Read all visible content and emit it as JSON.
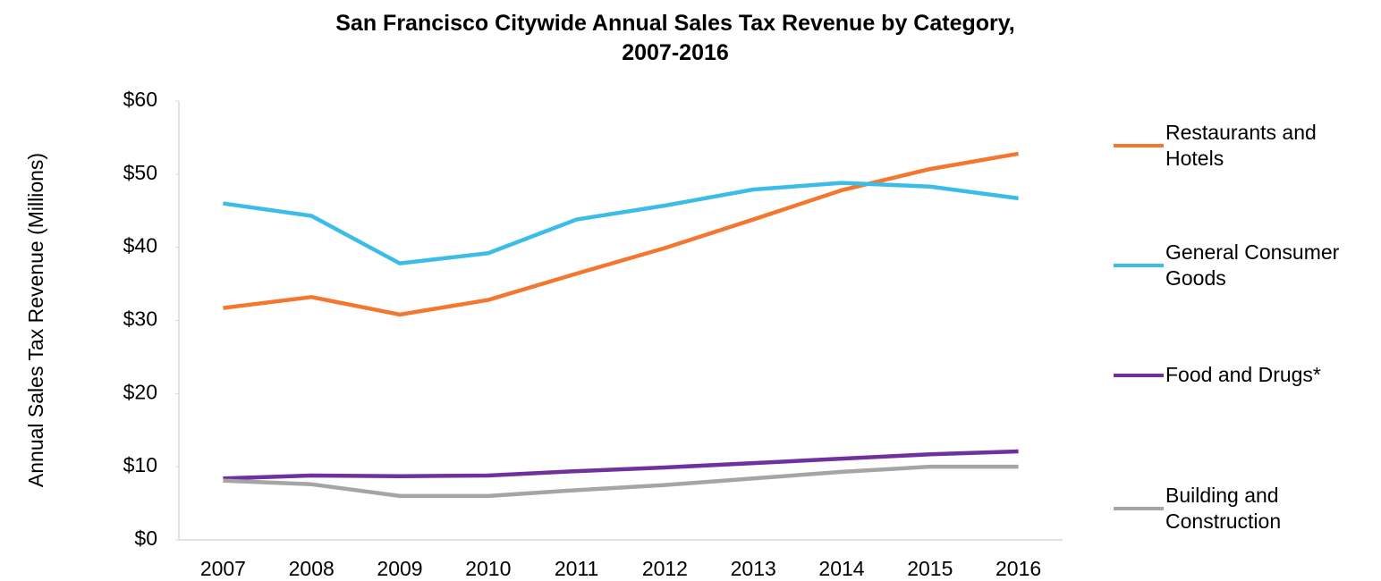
{
  "chart_data": {
    "type": "line",
    "title": "San Francisco Citywide Annual Sales Tax Revenue by Category, 2007-2016",
    "y_label": "Annual Sales Tax Revenue (Millions)",
    "categories": [
      "2007",
      "2008",
      "2009",
      "2010",
      "2011",
      "2012",
      "2013",
      "2014",
      "2015",
      "2016"
    ],
    "series": [
      {
        "name": "Restaurants and Hotels",
        "color": "#f4772f",
        "values": [
          31.7,
          33.2,
          30.8,
          32.8,
          36.4,
          39.9,
          43.8,
          47.8,
          50.7,
          52.8
        ]
      },
      {
        "name": "General Consumer Goods",
        "color": "#3cbce9",
        "values": [
          46.0,
          44.3,
          37.8,
          39.2,
          43.8,
          45.7,
          47.9,
          48.8,
          48.3,
          46.7
        ]
      },
      {
        "name": "Food and Drugs*",
        "color": "#7030a0",
        "values": [
          8.4,
          8.8,
          8.7,
          8.8,
          9.4,
          9.9,
          10.5,
          11.1,
          11.7,
          12.1
        ]
      },
      {
        "name": "Building and Construction",
        "color": "#a5a5a5",
        "values": [
          8.1,
          7.6,
          6.0,
          6.0,
          6.8,
          7.5,
          8.4,
          9.3,
          10.0,
          10.0
        ]
      }
    ],
    "ylim": [
      0,
      60
    ],
    "yticks": [
      {
        "value": 0,
        "label": "$0"
      },
      {
        "value": 10,
        "label": "$10"
      },
      {
        "value": 20,
        "label": "$20"
      },
      {
        "value": 30,
        "label": "$30"
      },
      {
        "value": 40,
        "label": "$40"
      },
      {
        "value": 50,
        "label": "$50"
      },
      {
        "value": 60,
        "label": "$60"
      }
    ],
    "grid": false
  }
}
